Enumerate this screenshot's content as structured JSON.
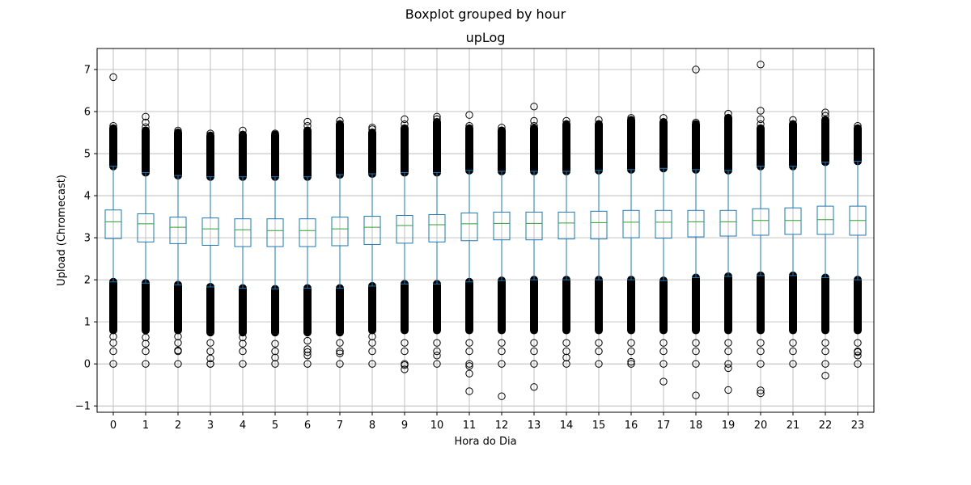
{
  "figure": {
    "suptitle": "Boxplot grouped by hour"
  },
  "chart_data": {
    "type": "boxplot",
    "title": "upLog",
    "xlabel": "Hora do Dia",
    "ylabel": "Upload (Chromecast)",
    "ylim": [
      -1.15,
      7.5
    ],
    "yticks": [
      -1,
      0,
      1,
      2,
      3,
      4,
      5,
      6,
      7
    ],
    "grid": true,
    "colors": {
      "box": "#1f77b4",
      "median": "#2ca02c",
      "grid": "#b0b0b0",
      "flier": "#000000"
    },
    "categories": [
      "0",
      "1",
      "2",
      "3",
      "4",
      "5",
      "6",
      "7",
      "8",
      "9",
      "10",
      "11",
      "12",
      "13",
      "14",
      "15",
      "16",
      "17",
      "18",
      "19",
      "20",
      "21",
      "22",
      "23"
    ],
    "boxes": [
      {
        "q1": 2.98,
        "median": 3.38,
        "q3": 3.66,
        "whislo": 1.95,
        "whishi": 4.7,
        "dense_low": [
          0.8,
          1.95
        ],
        "dense_high": [
          4.7,
          5.6
        ],
        "outliers": [
          0.0,
          0.3,
          0.5,
          0.65,
          5.66,
          6.82
        ]
      },
      {
        "q1": 2.9,
        "median": 3.33,
        "q3": 3.57,
        "whislo": 1.92,
        "whishi": 4.55,
        "dense_low": [
          0.8,
          1.92
        ],
        "dense_high": [
          4.55,
          5.55
        ],
        "outliers": [
          0.0,
          0.3,
          0.48,
          0.63,
          5.63,
          5.74,
          5.88
        ]
      },
      {
        "q1": 2.86,
        "median": 3.25,
        "q3": 3.49,
        "whislo": 1.88,
        "whishi": 4.48,
        "dense_low": [
          0.8,
          1.88
        ],
        "dense_high": [
          4.48,
          5.5
        ],
        "outliers": [
          0.0,
          0.3,
          0.32,
          0.5,
          0.65,
          5.55
        ]
      },
      {
        "q1": 2.82,
        "median": 3.21,
        "q3": 3.47,
        "whislo": 1.83,
        "whishi": 4.45,
        "dense_low": [
          0.75,
          1.83
        ],
        "dense_high": [
          4.45,
          5.43
        ],
        "outliers": [
          0.0,
          0.0,
          0.13,
          0.3,
          0.5,
          5.48
        ]
      },
      {
        "q1": 2.79,
        "median": 3.19,
        "q3": 3.45,
        "whislo": 1.8,
        "whishi": 4.45,
        "dense_low": [
          0.75,
          1.8
        ],
        "dense_high": [
          4.45,
          5.45
        ],
        "outliers": [
          0.0,
          0.3,
          0.48,
          0.63,
          5.55
        ]
      },
      {
        "q1": 2.79,
        "median": 3.17,
        "q3": 3.45,
        "whislo": 1.78,
        "whishi": 4.45,
        "dense_low": [
          0.75,
          1.78
        ],
        "dense_high": [
          4.45,
          5.45
        ],
        "outliers": [
          0.0,
          0.15,
          0.3,
          0.48,
          5.48
        ]
      },
      {
        "q1": 2.79,
        "median": 3.17,
        "q3": 3.45,
        "whislo": 1.8,
        "whishi": 4.45,
        "dense_low": [
          0.75,
          1.8
        ],
        "dense_high": [
          4.45,
          5.55
        ],
        "outliers": [
          0.0,
          0.2,
          0.28,
          0.35,
          0.55,
          5.66,
          5.76
        ]
      },
      {
        "q1": 2.81,
        "median": 3.21,
        "q3": 3.49,
        "whislo": 1.8,
        "whishi": 4.5,
        "dense_low": [
          0.75,
          1.8
        ],
        "dense_high": [
          4.5,
          5.7
        ],
        "outliers": [
          0.0,
          0.25,
          0.3,
          0.5,
          5.78
        ]
      },
      {
        "q1": 2.84,
        "median": 3.25,
        "q3": 3.51,
        "whislo": 1.85,
        "whishi": 4.52,
        "dense_low": [
          0.8,
          1.85
        ],
        "dense_high": [
          4.52,
          5.5
        ],
        "outliers": [
          0.0,
          0.3,
          0.5,
          0.65,
          5.58,
          5.62
        ]
      },
      {
        "q1": 2.87,
        "median": 3.29,
        "q3": 3.53,
        "whislo": 1.9,
        "whishi": 4.55,
        "dense_low": [
          0.8,
          1.9
        ],
        "dense_high": [
          4.55,
          5.6
        ],
        "outliers": [
          -0.13,
          -0.03,
          0.0,
          0.3,
          0.5,
          5.7,
          5.82
        ]
      },
      {
        "q1": 2.9,
        "median": 3.31,
        "q3": 3.55,
        "whislo": 1.9,
        "whishi": 4.55,
        "dense_low": [
          0.8,
          1.9
        ],
        "dense_high": [
          4.55,
          5.75
        ],
        "outliers": [
          0.0,
          0.2,
          0.3,
          0.5,
          5.82,
          5.88
        ]
      },
      {
        "q1": 2.93,
        "median": 3.33,
        "q3": 3.59,
        "whislo": 1.95,
        "whishi": 4.6,
        "dense_low": [
          0.8,
          1.95
        ],
        "dense_high": [
          4.6,
          5.6
        ],
        "outliers": [
          -0.65,
          -0.23,
          -0.05,
          0.0,
          0.3,
          0.5,
          5.66,
          5.92
        ]
      },
      {
        "q1": 2.95,
        "median": 3.34,
        "q3": 3.61,
        "whislo": 1.98,
        "whishi": 4.58,
        "dense_low": [
          0.8,
          1.98
        ],
        "dense_high": [
          4.58,
          5.55
        ],
        "outliers": [
          -0.77,
          0.0,
          0.3,
          0.5,
          5.62
        ]
      },
      {
        "q1": 2.95,
        "median": 3.34,
        "q3": 3.61,
        "whislo": 2.0,
        "whishi": 4.58,
        "dense_low": [
          0.8,
          2.0
        ],
        "dense_high": [
          4.58,
          5.6
        ],
        "outliers": [
          -0.55,
          0.0,
          0.3,
          0.5,
          5.66,
          5.78,
          6.12
        ]
      },
      {
        "q1": 2.97,
        "median": 3.35,
        "q3": 3.61,
        "whislo": 2.0,
        "whishi": 4.58,
        "dense_low": [
          0.8,
          2.0
        ],
        "dense_high": [
          4.58,
          5.7
        ],
        "outliers": [
          0.0,
          0.15,
          0.3,
          0.5,
          5.78
        ]
      },
      {
        "q1": 2.97,
        "median": 3.36,
        "q3": 3.63,
        "whislo": 2.0,
        "whishi": 4.6,
        "dense_low": [
          0.8,
          2.0
        ],
        "dense_high": [
          4.6,
          5.7
        ],
        "outliers": [
          0.0,
          0.3,
          0.5,
          5.8
        ]
      },
      {
        "q1": 3.0,
        "median": 3.37,
        "q3": 3.65,
        "whislo": 2.0,
        "whishi": 4.62,
        "dense_low": [
          0.8,
          2.0
        ],
        "dense_high": [
          4.62,
          5.8
        ],
        "outliers": [
          0.0,
          0.05,
          0.3,
          0.5,
          5.85
        ]
      },
      {
        "q1": 2.99,
        "median": 3.37,
        "q3": 3.65,
        "whislo": 1.98,
        "whishi": 4.65,
        "dense_low": [
          0.8,
          1.98
        ],
        "dense_high": [
          4.65,
          5.75
        ],
        "outliers": [
          -0.42,
          0.0,
          0.3,
          0.5,
          5.85
        ]
      },
      {
        "q1": 3.02,
        "median": 3.38,
        "q3": 3.65,
        "whislo": 2.05,
        "whishi": 4.62,
        "dense_low": [
          0.8,
          2.05
        ],
        "dense_high": [
          4.62,
          5.7
        ],
        "outliers": [
          -0.75,
          0.0,
          0.3,
          0.5,
          5.74,
          7.0
        ]
      },
      {
        "q1": 3.04,
        "median": 3.38,
        "q3": 3.65,
        "whislo": 2.08,
        "whishi": 4.6,
        "dense_low": [
          0.8,
          2.08
        ],
        "dense_high": [
          4.6,
          5.85
        ],
        "outliers": [
          -0.62,
          -0.1,
          0.0,
          0.3,
          0.5,
          5.95
        ]
      },
      {
        "q1": 3.06,
        "median": 3.41,
        "q3": 3.69,
        "whislo": 2.1,
        "whishi": 4.7,
        "dense_low": [
          0.8,
          2.1
        ],
        "dense_high": [
          4.7,
          5.6
        ],
        "outliers": [
          -0.7,
          -0.63,
          0.0,
          0.3,
          0.5,
          5.7,
          5.82,
          6.02,
          7.12
        ]
      },
      {
        "q1": 3.08,
        "median": 3.41,
        "q3": 3.71,
        "whislo": 2.1,
        "whishi": 4.7,
        "dense_low": [
          0.8,
          2.1
        ],
        "dense_high": [
          4.7,
          5.7
        ],
        "outliers": [
          0.0,
          0.3,
          0.5,
          5.8
        ]
      },
      {
        "q1": 3.08,
        "median": 3.43,
        "q3": 3.75,
        "whislo": 2.05,
        "whishi": 4.8,
        "dense_low": [
          0.8,
          2.05
        ],
        "dense_high": [
          4.8,
          5.8
        ],
        "outliers": [
          -0.28,
          0.0,
          0.3,
          0.5,
          5.9,
          5.98
        ]
      },
      {
        "q1": 3.06,
        "median": 3.41,
        "q3": 3.75,
        "whislo": 2.0,
        "whishi": 4.82,
        "dense_low": [
          0.8,
          2.0
        ],
        "dense_high": [
          4.82,
          5.6
        ],
        "outliers": [
          0.0,
          0.2,
          0.28,
          0.3,
          0.5,
          5.66
        ]
      }
    ]
  }
}
